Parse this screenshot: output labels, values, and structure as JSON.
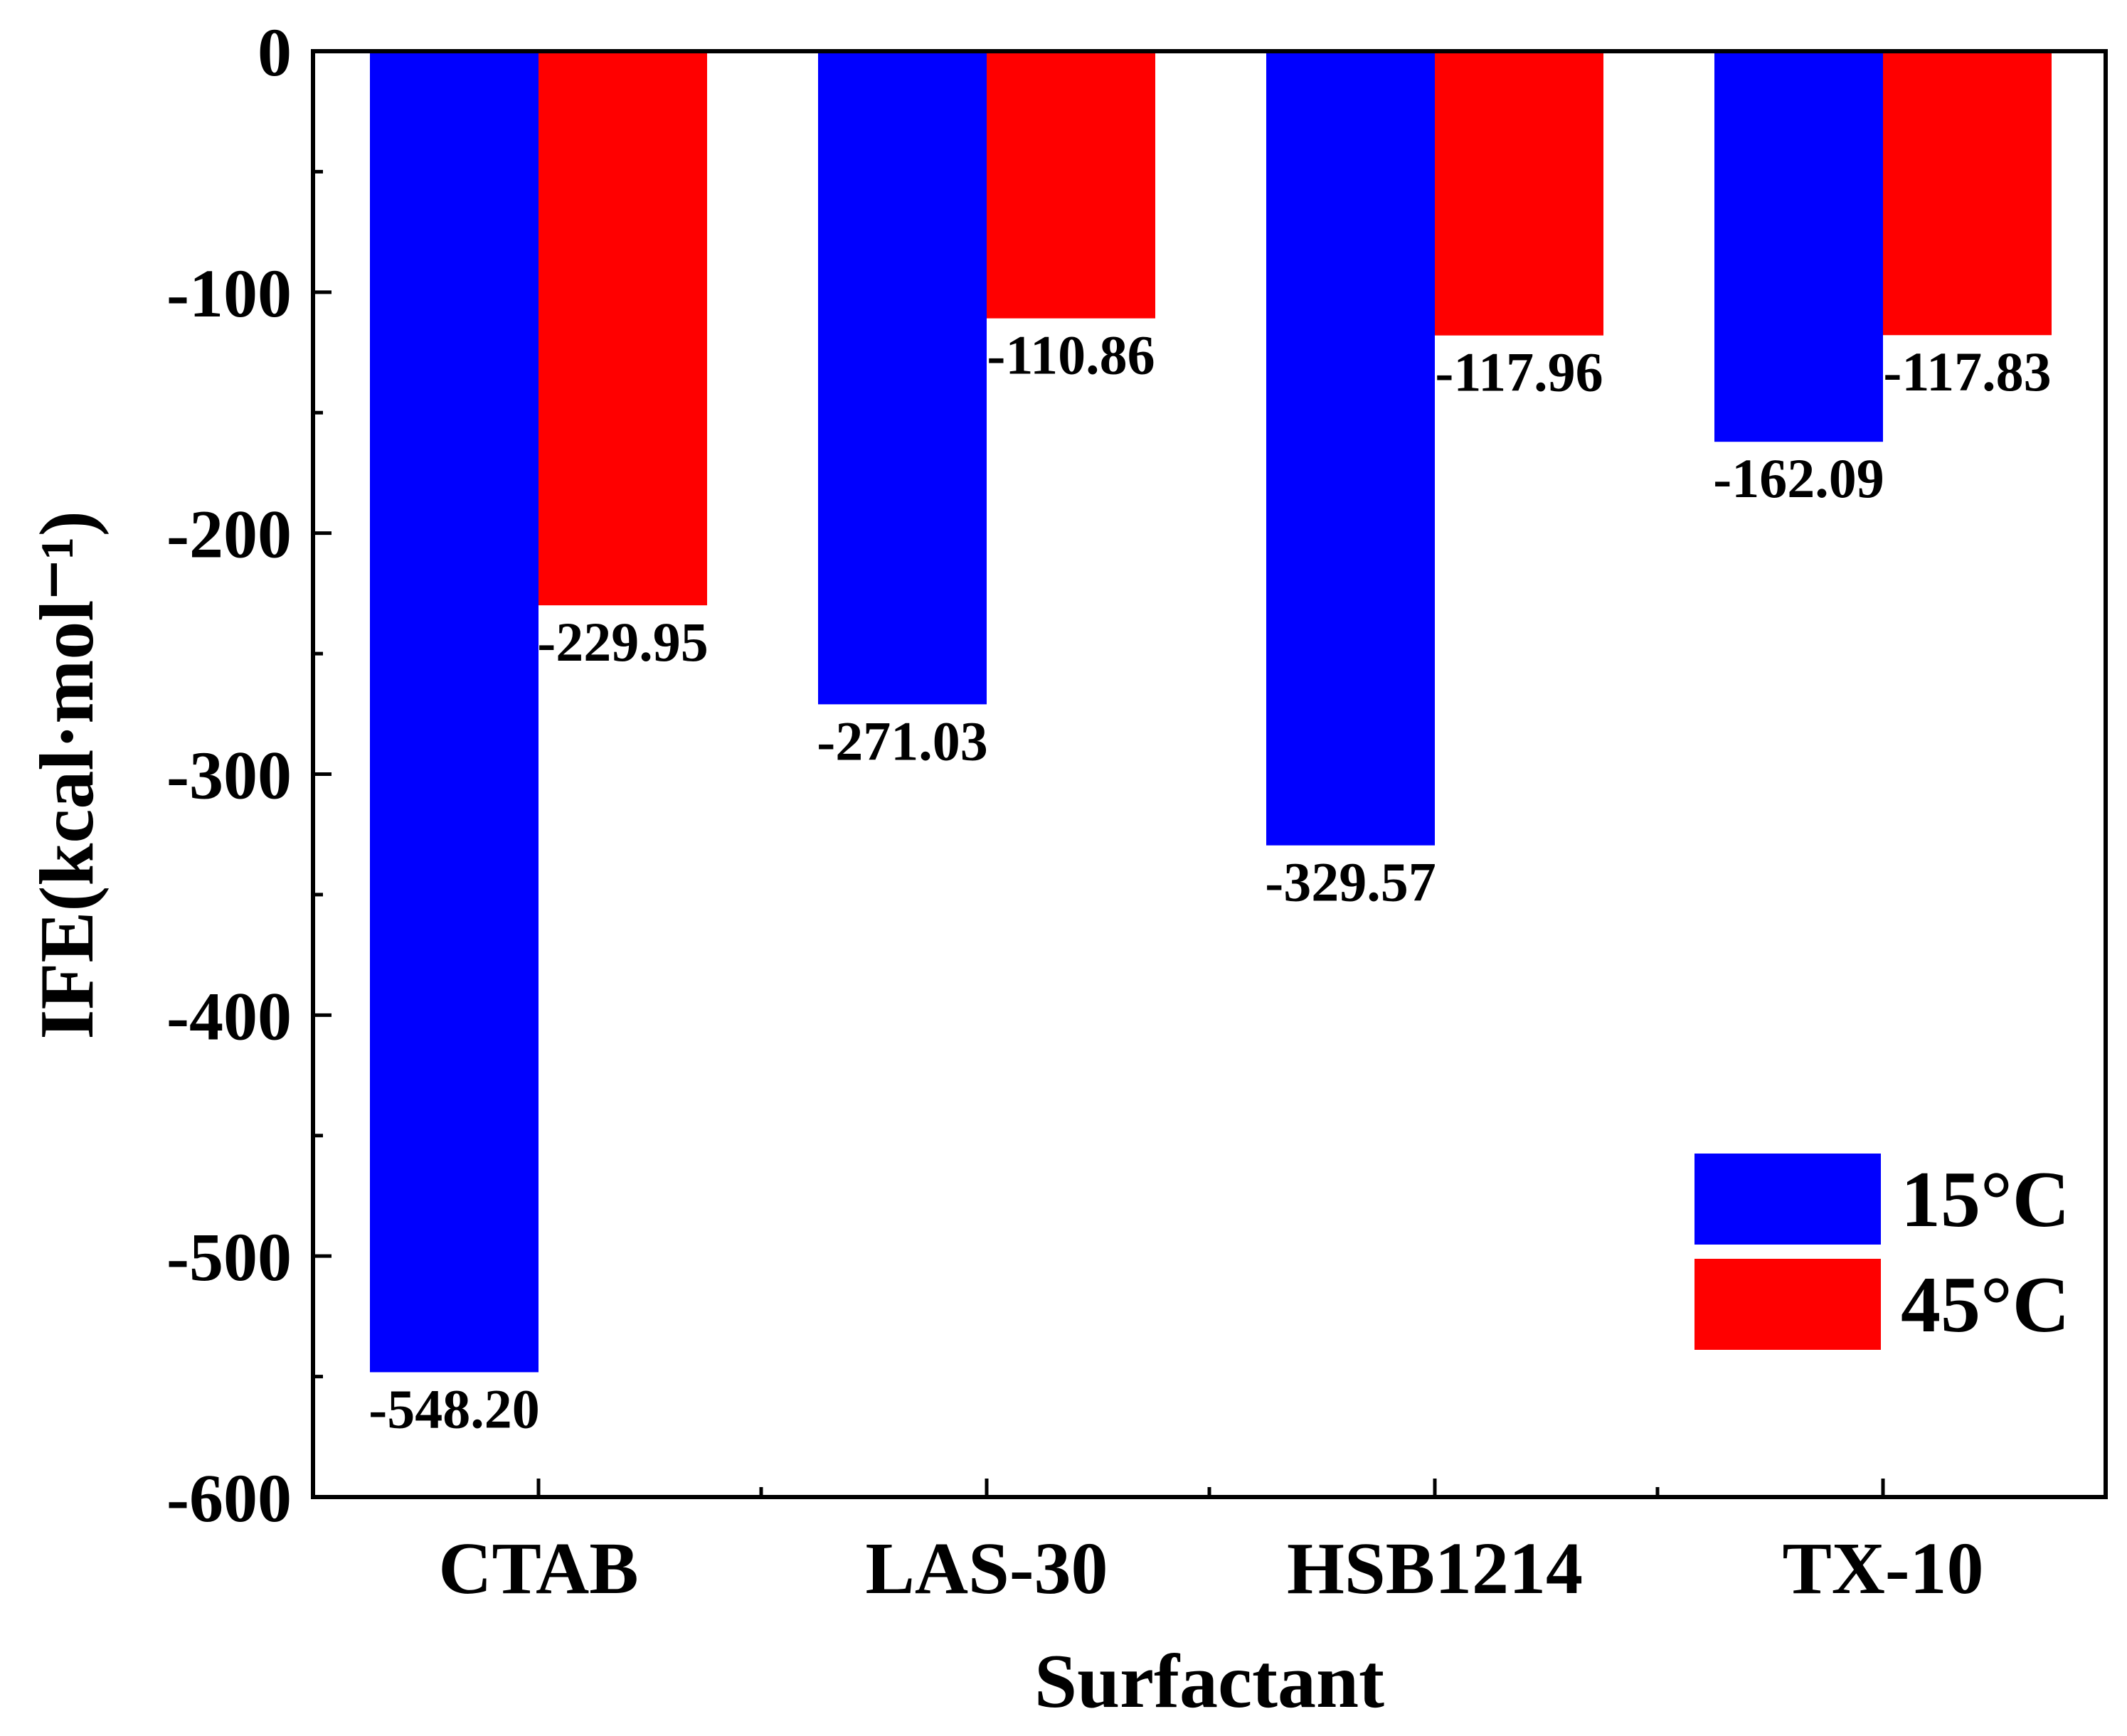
{
  "chart_data": {
    "type": "bar",
    "title": "",
    "xlabel": "Surfactant",
    "ylabel": "IFE(kcal·mol⁻¹)",
    "ylim": [
      -600,
      0
    ],
    "yticks": [
      0,
      -100,
      -200,
      -300,
      -400,
      -500,
      -600
    ],
    "ytick_labels": [
      "0",
      "-100",
      "-200",
      "-300",
      "-400",
      "-500",
      "-600"
    ],
    "categories": [
      "CTAB",
      "LAS-30",
      "HSB1214",
      "TX-10"
    ],
    "series": [
      {
        "name": "15°C",
        "color": "#0000ff",
        "values": [
          -548.2,
          -271.03,
          -329.57,
          -162.09
        ],
        "labels": [
          "-548.20",
          "-271.03",
          "-329.57",
          "-162.09"
        ]
      },
      {
        "name": "45°C",
        "color": "#ff0000",
        "values": [
          -229.95,
          -110.86,
          -117.96,
          -117.83
        ],
        "labels": [
          "-229.95",
          "-110.86",
          "-117.96",
          "-117.83"
        ]
      }
    ],
    "legend_position": "bottom-right",
    "grid": false
  }
}
